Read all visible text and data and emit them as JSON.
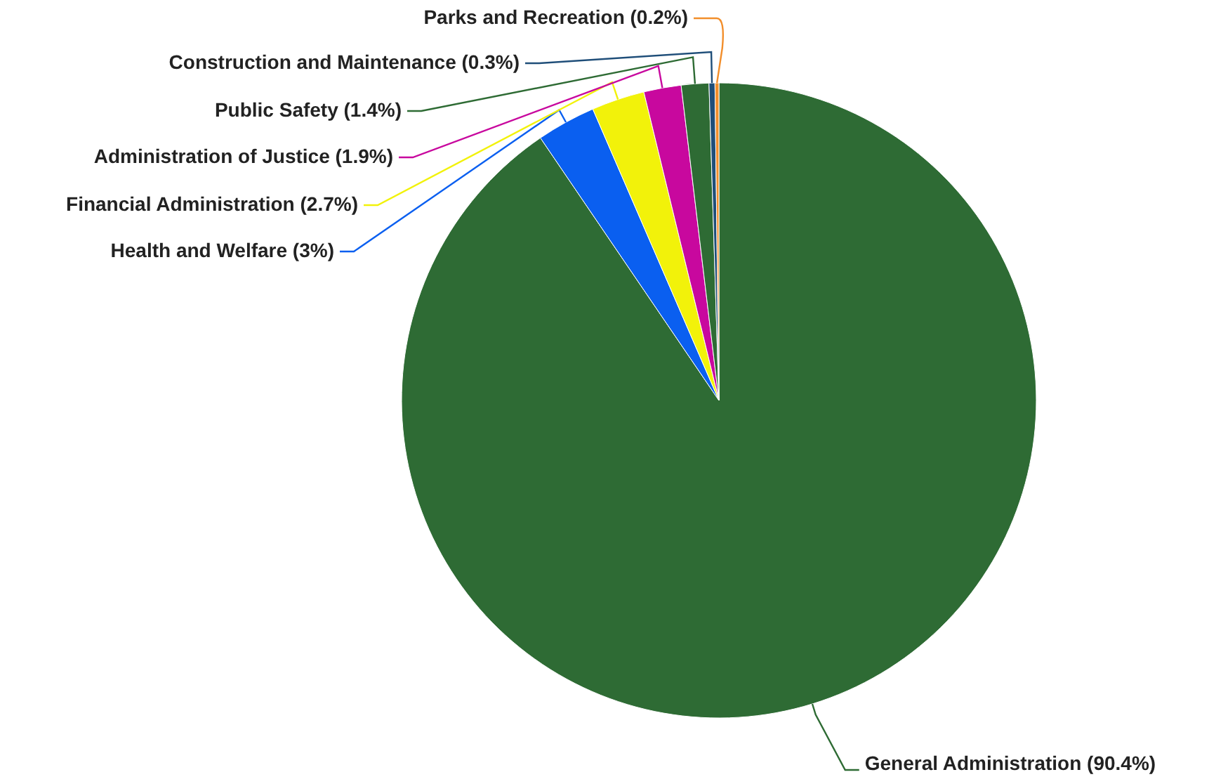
{
  "chart_data": {
    "type": "pie",
    "categories": [
      "General Administration",
      "Health and Welfare",
      "Financial Administration",
      "Administration of Justice",
      "Public Safety",
      "Construction and Maintenance",
      "Parks and Recreation"
    ],
    "values": [
      90.4,
      3,
      2.7,
      1.9,
      1.4,
      0.3,
      0.2
    ],
    "colors": [
      "#2e6b34",
      "#0a5ff0",
      "#f2f20a",
      "#c8089e",
      "#2e6b34",
      "#1f4e79",
      "#f28e2b"
    ],
    "value_labels": [
      "(90.4%)",
      "(3%)",
      "(2.7%)",
      "(1.9%)",
      "(1.4%)",
      "(0.3%)",
      "(0.2%)"
    ]
  }
}
